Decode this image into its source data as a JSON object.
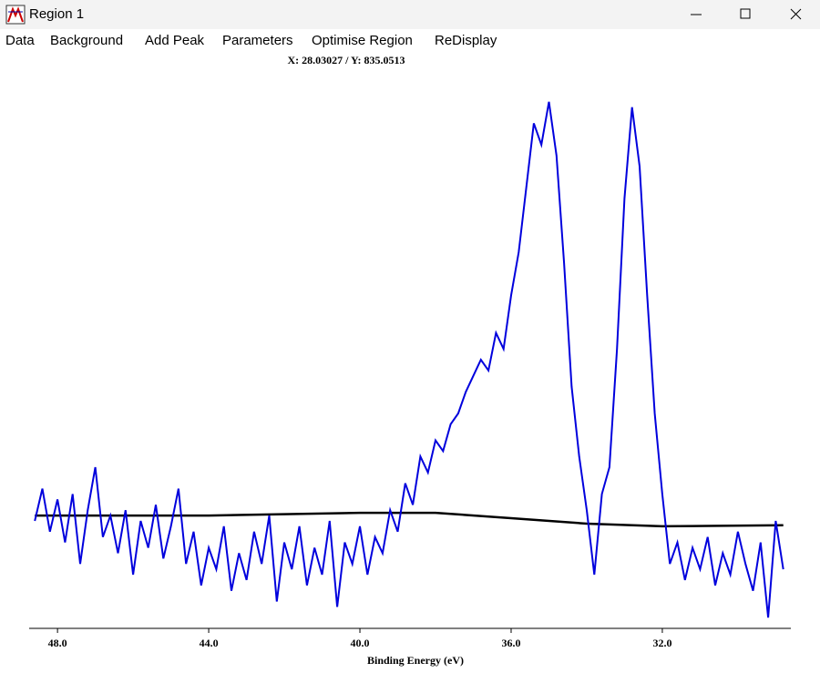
{
  "window": {
    "title": "Region 1"
  },
  "menu": [
    "Data",
    "Background",
    "Add Peak",
    "Parameters",
    "Optimise Region",
    "ReDisplay"
  ],
  "readout": "X: 28.03027 / Y: 835.0513",
  "chart_data": {
    "type": "line",
    "x_label": "Binding Energy (eV)",
    "xlim": [
      48.75,
      28.6
    ],
    "ylim": [
      0,
      100
    ],
    "xticks": [
      {
        "value": 48,
        "label": "48.0"
      },
      {
        "value": 44,
        "label": "44.0"
      },
      {
        "value": 40,
        "label": "40.0"
      },
      {
        "value": 36,
        "label": "36.0"
      },
      {
        "value": 32,
        "label": "32.0"
      }
    ],
    "x": [
      48.6,
      48.4,
      48.2,
      48.0,
      47.8,
      47.6,
      47.4,
      47.2,
      47.0,
      46.8,
      46.6,
      46.4,
      46.2,
      46.0,
      45.8,
      45.6,
      45.4,
      45.2,
      45.0,
      44.8,
      44.6,
      44.4,
      44.2,
      44.0,
      43.8,
      43.6,
      43.4,
      43.2,
      43.0,
      42.8,
      42.6,
      42.4,
      42.2,
      42.0,
      41.8,
      41.6,
      41.4,
      41.2,
      41.0,
      40.8,
      40.6,
      40.4,
      40.2,
      40.0,
      39.8,
      39.6,
      39.4,
      39.2,
      39.0,
      38.8,
      38.6,
      38.4,
      38.2,
      38.0,
      37.8,
      37.6,
      37.4,
      37.2,
      37.0,
      36.8,
      36.6,
      36.4,
      36.2,
      36.0,
      35.8,
      35.6,
      35.4,
      35.2,
      35.0,
      34.8,
      34.6,
      34.4,
      34.2,
      34.0,
      33.8,
      33.6,
      33.4,
      33.2,
      33.0,
      32.8,
      32.6,
      32.4,
      32.2,
      32.0,
      31.8,
      31.6,
      31.4,
      31.2,
      31.0,
      30.8,
      30.6,
      30.4,
      30.2,
      30.0,
      29.8,
      29.6,
      29.4,
      29.2,
      29.0,
      28.8
    ],
    "series": [
      {
        "color": "#0000dd",
        "values": [
          20,
          26,
          18,
          24,
          16,
          25,
          12,
          22,
          30,
          17,
          21,
          14,
          22,
          10,
          20,
          15,
          23,
          13,
          19,
          26,
          12,
          18,
          8,
          15,
          11,
          19,
          7,
          14,
          9,
          18,
          12,
          21,
          5,
          16,
          11,
          19,
          8,
          15,
          10,
          20,
          4,
          16,
          12,
          19,
          10,
          17,
          14,
          22,
          18,
          27,
          23,
          32,
          29,
          35,
          33,
          38,
          40,
          44,
          47,
          50,
          48,
          55,
          52,
          62,
          70,
          82,
          94,
          90,
          98,
          88,
          68,
          45,
          32,
          22,
          10,
          25,
          30,
          52,
          80,
          97,
          86,
          62,
          40,
          25,
          12,
          16,
          9,
          15,
          11,
          17,
          8,
          14,
          10,
          18,
          12,
          7,
          16,
          2,
          20,
          11
        ]
      }
    ],
    "background": {
      "color": "#000000",
      "x": [
        48.6,
        44.0,
        40.0,
        38.0,
        36.0,
        34.0,
        32.0,
        28.8
      ],
      "values": [
        21,
        21,
        21.5,
        21.5,
        20.5,
        19.5,
        19,
        19.2
      ]
    }
  }
}
